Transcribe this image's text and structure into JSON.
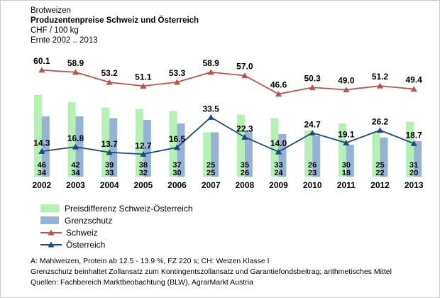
{
  "header": {
    "line1": "Brotweizen",
    "line2": "Produzentenpreise Schweiz und Österreich",
    "line3": "CHF / 100 kg",
    "line4": "Ernte 2002 .. 2013"
  },
  "chart_data": {
    "type": "bar",
    "subtype": "stacked-look grouped bars with two overlay line series",
    "title": "Produzentenpreise Schweiz und Österreich",
    "ylabel": "CHF / 100 kg",
    "xlabel": "",
    "categories": [
      "2002",
      "2003",
      "2004",
      "2005",
      "2006",
      "2007",
      "2008",
      "2009",
      "2010",
      "2011",
      "2012",
      "2013"
    ],
    "series": [
      {
        "name": "Preisdifferenz Schweiz-Österreich",
        "type": "bar",
        "color": "#b5f0b5",
        "values": [
          46,
          42,
          39,
          38,
          37,
          25,
          35,
          33,
          26,
          30,
          25,
          31
        ]
      },
      {
        "name": "Grenzschutz",
        "type": "bar",
        "color": "#95b3d7",
        "values": [
          34,
          34,
          33,
          32,
          30,
          25,
          26,
          24,
          23,
          18,
          22,
          20
        ]
      },
      {
        "name": "Schweiz",
        "type": "line",
        "marker": "triangle",
        "color": "#c0504d",
        "values": [
          60.1,
          58.9,
          53.2,
          51.1,
          53.3,
          58.9,
          57.0,
          46.6,
          50.3,
          49.0,
          51.2,
          49.4
        ]
      },
      {
        "name": "Österreich",
        "type": "line",
        "marker": "triangle",
        "color": "#1f497d",
        "values": [
          14.3,
          16.8,
          13.7,
          12.7,
          16.5,
          33.5,
          22.3,
          14.0,
          24.7,
          19.1,
          26.2,
          18.7
        ]
      }
    ],
    "ylim": [
      0,
      66
    ],
    "grid": false,
    "axes_visible": false,
    "legend_position": "bottom-left"
  },
  "footnotes": [
    "A: Mahlweizen, Protein ab 12.5 - 13.9 %, FZ 220 s; CH: Weizen Klasse I",
    "Grenzschutz beinhaltet Zollansatz zum Kontingentszollansatz und Garantiefondsbeitrag; arithmetisches Mittel",
    "Quellen: Fachbereich Marktbeobachtung (BLW),  AgrarMarkt Austria"
  ]
}
